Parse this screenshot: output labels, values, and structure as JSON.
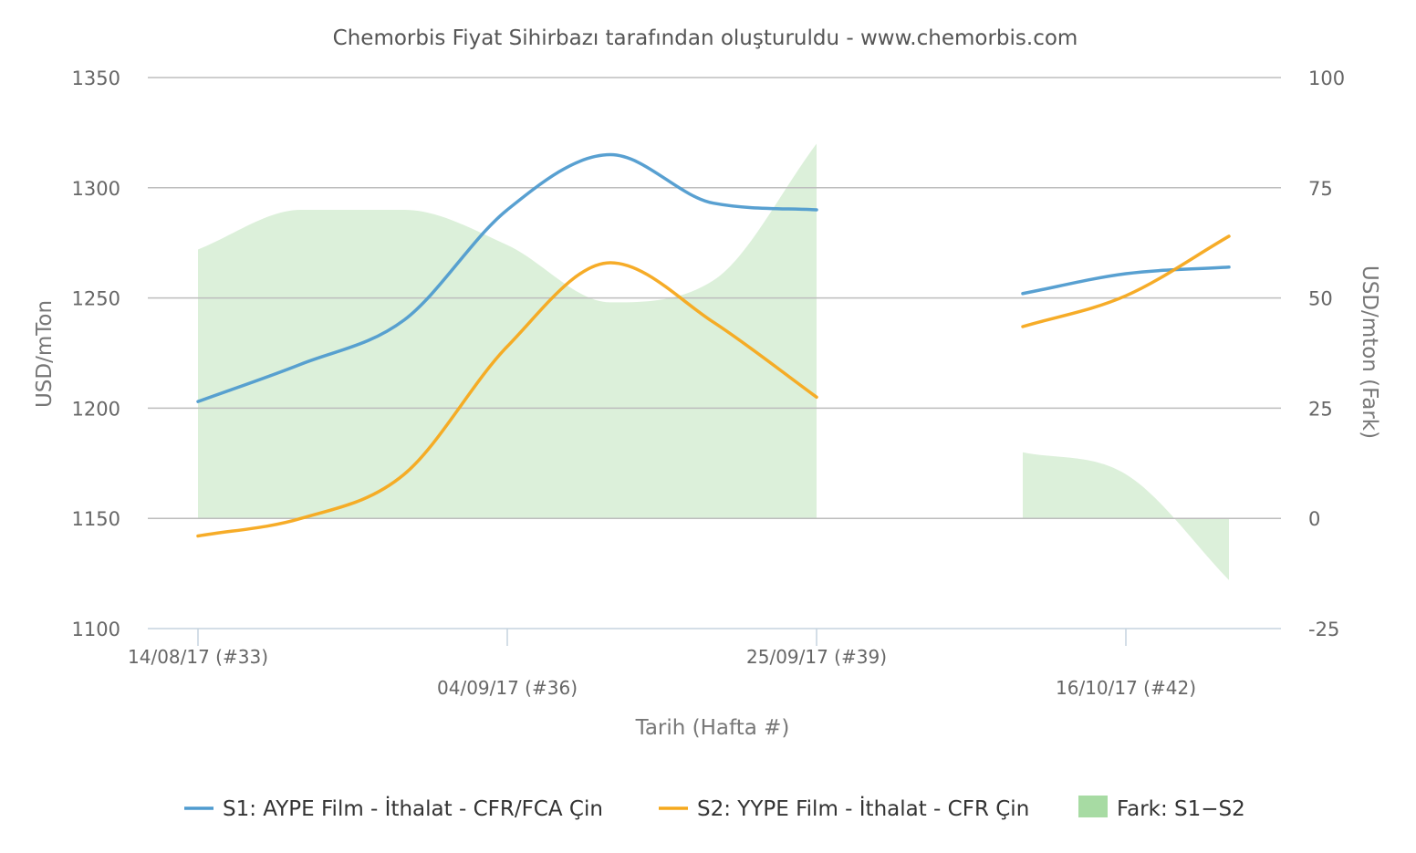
{
  "chart_data": {
    "type": "line",
    "title": "Chemorbis Fiyat Sihirbazı tarafından oluşturuldu - www.chemorbis.com",
    "xlabel": "Tarih (Hafta #)",
    "ylabel": "USD/mTon",
    "ylabel_right": "USD/mton (Fark)",
    "ylim": [
      1100,
      1350
    ],
    "ylim_right": [
      -25,
      100
    ],
    "yticks": [
      "1350",
      "1300",
      "1250",
      "1200",
      "1150",
      "1100"
    ],
    "yticks_right": [
      "100",
      "75",
      "50",
      "25",
      "0",
      "-25"
    ],
    "x_tick_labels": [
      {
        "label": "14/08/17 (#33)",
        "week": 33
      },
      {
        "label": "04/09/17 (#36)",
        "week": 36
      },
      {
        "label": "25/09/17 (#39)",
        "week": 39
      },
      {
        "label": "16/10/17 (#42)",
        "week": 42
      }
    ],
    "x_weeks": [
      33,
      34,
      35,
      36,
      37,
      38,
      39,
      40,
      41,
      42,
      43
    ],
    "series": [
      {
        "name": "S1: AYPE Film - İthalat - CFR/FCA Çin",
        "color": "#4f9bcf",
        "axis": "left",
        "values": [
          1203,
          1220,
          1240,
          1290,
          1315,
          1293,
          1290,
          null,
          1252,
          1261,
          1264
        ]
      },
      {
        "name": "S2: YYPE Film - İthalat - CFR Çin",
        "color": "#f5a81c",
        "axis": "left",
        "values": [
          1142,
          1150,
          1170,
          1228,
          1266,
          1239,
          1205,
          null,
          1237,
          1251,
          1278
        ]
      },
      {
        "name": "Fark: S1−S2",
        "color": "#a7dba3",
        "fill": "#dcf0da",
        "axis": "right",
        "type": "area",
        "values": [
          61,
          70,
          70,
          62,
          49,
          54,
          85,
          null,
          15,
          10,
          -14
        ]
      }
    ],
    "legend_position": "bottom",
    "grid": true
  }
}
